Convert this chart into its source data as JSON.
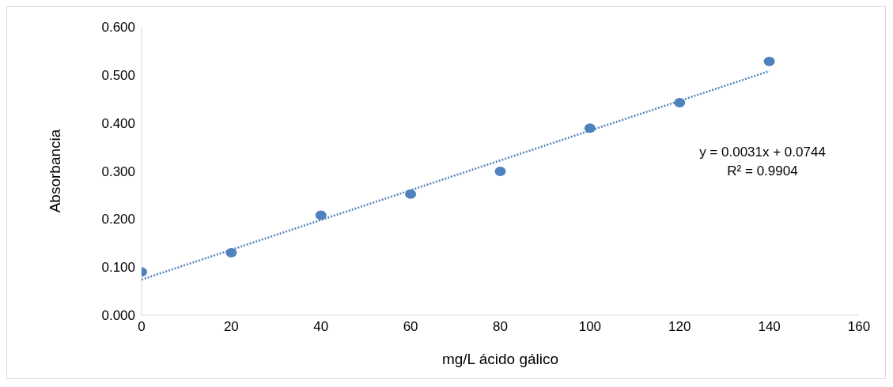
{
  "chart_data": {
    "type": "scatter",
    "xlabel": "mg/L ácido gálico",
    "ylabel": "Absorbancia",
    "x": [
      0,
      20,
      40,
      60,
      80,
      100,
      120,
      140
    ],
    "series": [
      {
        "type": "scatter",
        "color": "#4f81bd",
        "values": [
          0.09,
          0.13,
          0.208,
          0.252,
          0.299,
          0.389,
          0.442,
          0.528
        ],
        "marker": "circle"
      },
      {
        "type": "line",
        "color": "#4f81bd",
        "x": [
          0,
          140
        ],
        "values": [
          0.074,
          0.508
        ],
        "line_style": "dotted",
        "marker": "none"
      }
    ],
    "xlim": [
      0,
      160
    ],
    "xticks": [
      0,
      20,
      40,
      60,
      80,
      100,
      120,
      140,
      160
    ],
    "ylim": [
      0,
      0.6
    ],
    "yticks": [
      {
        "value": 0,
        "label": "0.000"
      },
      {
        "value": 0.1,
        "label": "0.100"
      },
      {
        "value": 0.2,
        "label": "0.200"
      },
      {
        "value": 0.3,
        "label": "0.300"
      },
      {
        "value": 0.4,
        "label": "0.400"
      },
      {
        "value": 0.5,
        "label": "0.500"
      },
      {
        "value": 0.6,
        "label": "0.600"
      }
    ],
    "annotations": [
      "y = 0.0031x + 0.0744",
      "R² = 0.9904"
    ],
    "grid": false,
    "legend": false
  }
}
